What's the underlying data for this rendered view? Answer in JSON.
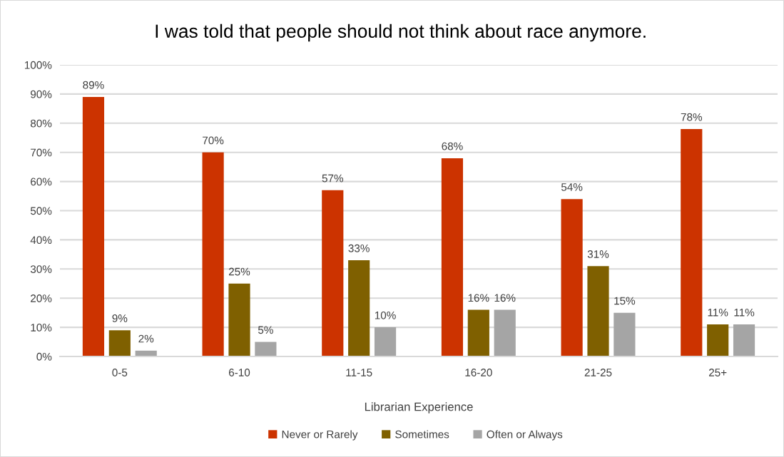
{
  "chart_data": {
    "type": "bar",
    "title": "I was told that people should not think about race anymore.",
    "xlabel": "Librarian Experience",
    "categories": [
      "0-5",
      "6-10",
      "11-15",
      "16-20",
      "21-25",
      "25+"
    ],
    "series": [
      {
        "name": "Never or Rarely",
        "color": "#cc3300",
        "values": [
          89,
          70,
          57,
          68,
          54,
          78
        ],
        "value_labels": [
          "89%",
          "70%",
          "57%",
          "68%",
          "54%",
          "78%"
        ]
      },
      {
        "name": "Sometimes",
        "color": "#7f6000",
        "values": [
          9,
          25,
          33,
          16,
          31,
          11
        ],
        "value_labels": [
          "9%",
          "25%",
          "33%",
          "16%",
          "31%",
          "11%"
        ]
      },
      {
        "name": "Often or Always",
        "color": "#a5a5a5",
        "values": [
          2,
          5,
          10,
          16,
          15,
          11
        ],
        "value_labels": [
          "2%",
          "5%",
          "10%",
          "16%",
          "15%",
          "11%"
        ]
      }
    ],
    "ylim": [
      0,
      100
    ],
    "yticks": [
      {
        "value": 0,
        "label": "0%"
      },
      {
        "value": 10,
        "label": "10%"
      },
      {
        "value": 20,
        "label": "20%"
      },
      {
        "value": 30,
        "label": "30%"
      },
      {
        "value": 40,
        "label": "40%"
      },
      {
        "value": 50,
        "label": "50%"
      },
      {
        "value": 60,
        "label": "60%"
      },
      {
        "value": 70,
        "label": "70%"
      },
      {
        "value": 80,
        "label": "80%"
      },
      {
        "value": 90,
        "label": "90%"
      },
      {
        "value": 100,
        "label": "100%"
      }
    ],
    "grid": "y",
    "legend": "bottom"
  }
}
